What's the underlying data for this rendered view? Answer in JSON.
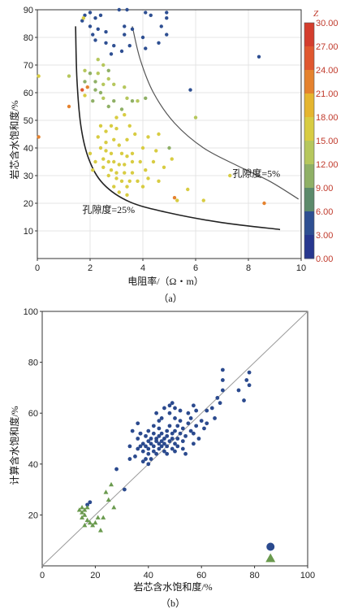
{
  "chart_data": [
    {
      "type": "scatter",
      "caption": "（a）",
      "xlabel": "电阻率/（Ω・m）",
      "ylabel": "岩芯含水饱和度/%",
      "xlim": [
        0,
        10
      ],
      "ylim": [
        0,
        90
      ],
      "xticks": [
        "0",
        "2",
        "4",
        "6",
        "8",
        "10"
      ],
      "yticks": [
        "10",
        "20",
        "30",
        "40",
        "50",
        "60",
        "70",
        "80",
        "90"
      ],
      "colorbar": {
        "title": "Z",
        "range": [
          0,
          30
        ],
        "ticks": [
          "30.00",
          "27.00",
          "24.00",
          "21.00",
          "18.00",
          "15.00",
          "12.00",
          "9.00",
          "6.00",
          "3.00",
          "0.00"
        ],
        "colors": [
          "#d43d2d",
          "#e0572f",
          "#e5822e",
          "#e5b52f",
          "#d8cc42",
          "#b6c75d",
          "#8fb066",
          "#5c8a6b",
          "#2e4f92",
          "#27378f"
        ]
      },
      "annotations": [
        {
          "text": "孔隙度=5%",
          "x": 8.3,
          "y": 29.5
        },
        {
          "text": "孔隙度=25%",
          "x": 2.7,
          "y": 16.5
        }
      ],
      "curves": [
        {
          "name": "孔隙度=25%",
          "points": [
            [
              1.45,
              84
            ],
            [
              1.5,
              65
            ],
            [
              1.65,
              48
            ],
            [
              1.95,
              36
            ],
            [
              2.5,
              27
            ],
            [
              3.5,
              20.5
            ],
            [
              5.0,
              16.5
            ],
            [
              7.0,
              13.0
            ],
            [
              9.2,
              10.5
            ]
          ]
        },
        {
          "name": "孔隙度=5%",
          "points": [
            [
              3.6,
              84
            ],
            [
              3.9,
              72
            ],
            [
              4.4,
              60
            ],
            [
              5.2,
              49
            ],
            [
              6.3,
              40
            ],
            [
              7.6,
              33.5
            ],
            [
              8.8,
              28
            ],
            [
              9.9,
              21.5
            ]
          ]
        }
      ],
      "points": [
        [
          1.8,
          88,
          4
        ],
        [
          2.0,
          89,
          4
        ],
        [
          1.7,
          86,
          4
        ],
        [
          2.2,
          87,
          5
        ],
        [
          2.4,
          88,
          4
        ],
        [
          3.1,
          90,
          4
        ],
        [
          3.4,
          90,
          4
        ],
        [
          4.1,
          89,
          4
        ],
        [
          4.3,
          88,
          5
        ],
        [
          4.9,
          89,
          4
        ],
        [
          4.9,
          87,
          4
        ],
        [
          2.0,
          84,
          4
        ],
        [
          2.3,
          83,
          4
        ],
        [
          2.1,
          81,
          4
        ],
        [
          2.2,
          79,
          4
        ],
        [
          2.6,
          82,
          4
        ],
        [
          3.3,
          84,
          4
        ],
        [
          3.6,
          83,
          4
        ],
        [
          3.3,
          81,
          4
        ],
        [
          2.6,
          78,
          4
        ],
        [
          2.9,
          77,
          4
        ],
        [
          3.5,
          77,
          4
        ],
        [
          3.2,
          75,
          4
        ],
        [
          2.8,
          74,
          5
        ],
        [
          4.0,
          80,
          4
        ],
        [
          4.7,
          84,
          4
        ],
        [
          4.9,
          81,
          4
        ],
        [
          4.6,
          78,
          4
        ],
        [
          4.1,
          76,
          4
        ],
        [
          2.3,
          72,
          13
        ],
        [
          2.5,
          70,
          14
        ],
        [
          2.0,
          67,
          11
        ],
        [
          1.8,
          68,
          13
        ],
        [
          2.3,
          67,
          13
        ],
        [
          2.7,
          65,
          13
        ],
        [
          2.2,
          64,
          12
        ],
        [
          2.5,
          63,
          13
        ],
        [
          2.9,
          63,
          14
        ],
        [
          2.2,
          61,
          11
        ],
        [
          2.4,
          60,
          12
        ],
        [
          2.5,
          58,
          13
        ],
        [
          2.9,
          57,
          10
        ],
        [
          2.7,
          55,
          12
        ],
        [
          3.2,
          54,
          11
        ],
        [
          3.4,
          58,
          13
        ],
        [
          3.6,
          57,
          10
        ],
        [
          3.8,
          57,
          13
        ],
        [
          4.1,
          58,
          12
        ],
        [
          3.3,
          62,
          15
        ],
        [
          1.8,
          64,
          12
        ],
        [
          2.1,
          57,
          11
        ],
        [
          2.7,
          68,
          12
        ],
        [
          1.9,
          62,
          22
        ],
        [
          1.7,
          61,
          25
        ],
        [
          1.2,
          55,
          24
        ],
        [
          0.05,
          44,
          24
        ],
        [
          1.8,
          59,
          18
        ],
        [
          0.05,
          66,
          16
        ],
        [
          1.2,
          66,
          14
        ],
        [
          1.75,
          87,
          17
        ],
        [
          2.4,
          48,
          16
        ],
        [
          2.6,
          46,
          17
        ],
        [
          2.8,
          48,
          17
        ],
        [
          3.0,
          47,
          16
        ],
        [
          3.5,
          48,
          17
        ],
        [
          2.3,
          44,
          16
        ],
        [
          2.6,
          42,
          17
        ],
        [
          2.9,
          43,
          17
        ],
        [
          3.1,
          41,
          16
        ],
        [
          3.4,
          43,
          16
        ],
        [
          2.4,
          40,
          17
        ],
        [
          2.6,
          39,
          17
        ],
        [
          2.8,
          38,
          16
        ],
        [
          3.2,
          38,
          17
        ],
        [
          3.4,
          37,
          16
        ],
        [
          3.6,
          38,
          17
        ],
        [
          2.5,
          36,
          17
        ],
        [
          2.7,
          35,
          16
        ],
        [
          2.9,
          35,
          17
        ],
        [
          3.1,
          34,
          16
        ],
        [
          3.3,
          34,
          17
        ],
        [
          3.6,
          35,
          17
        ],
        [
          3.9,
          35,
          16
        ],
        [
          2.5,
          33,
          17
        ],
        [
          2.8,
          32,
          16
        ],
        [
          3.0,
          31,
          17
        ],
        [
          3.3,
          31,
          17
        ],
        [
          3.6,
          31,
          16
        ],
        [
          4.1,
          32,
          17
        ],
        [
          2.7,
          30,
          17
        ],
        [
          3.0,
          29,
          16
        ],
        [
          3.2,
          28,
          17
        ],
        [
          3.5,
          28,
          17
        ],
        [
          3.8,
          28,
          16
        ],
        [
          4.2,
          29,
          17
        ],
        [
          4.6,
          28,
          17
        ],
        [
          3.4,
          26,
          16
        ],
        [
          4.0,
          26,
          17
        ],
        [
          2.0,
          38,
          17
        ],
        [
          2.2,
          35,
          16
        ],
        [
          4.4,
          35,
          17
        ],
        [
          4.8,
          33,
          17
        ],
        [
          5.1,
          36,
          17
        ],
        [
          2.1,
          32,
          17
        ],
        [
          3.0,
          51,
          17
        ],
        [
          3.3,
          52,
          17
        ],
        [
          3.7,
          45,
          16
        ],
        [
          4.2,
          44,
          17
        ],
        [
          4.6,
          45,
          16
        ],
        [
          4.0,
          40,
          17
        ],
        [
          4.5,
          39,
          17
        ],
        [
          2.9,
          26,
          17
        ],
        [
          3.1,
          24,
          17
        ],
        [
          3.4,
          23,
          16
        ],
        [
          5.3,
          21,
          17
        ],
        [
          5.7,
          25,
          17
        ],
        [
          6.3,
          21,
          17
        ],
        [
          7.3,
          30,
          17
        ],
        [
          6.0,
          51,
          13
        ],
        [
          5.0,
          40,
          11
        ],
        [
          5.8,
          61,
          4
        ],
        [
          8.4,
          73,
          4
        ],
        [
          5.2,
          22,
          22
        ],
        [
          8.6,
          20,
          22
        ]
      ]
    },
    {
      "type": "scatter",
      "caption": "（b）",
      "xlabel": "岩芯含水饱和度/%",
      "ylabel": "计算含水饱和度/%",
      "xlim": [
        0,
        100
      ],
      "ylim": [
        0,
        100
      ],
      "xticks": [
        "0",
        "20",
        "40",
        "60",
        "80",
        "100"
      ],
      "yticks": [
        "20",
        "40",
        "60",
        "80",
        "100"
      ],
      "colors": {
        "circle": "#2b4a8e",
        "triangle": "#6a9a4e",
        "line": "#9a9a9a"
      },
      "series": [
        {
          "marker": "circle",
          "values": [
            [
              28,
              38
            ],
            [
              31,
              30
            ],
            [
              33,
              42
            ],
            [
              33,
              47
            ],
            [
              34,
              53
            ],
            [
              35,
              43
            ],
            [
              36,
              46
            ],
            [
              36,
              50
            ],
            [
              37,
              47
            ],
            [
              37,
              52
            ],
            [
              38,
              41
            ],
            [
              38,
              45
            ],
            [
              38,
              48
            ],
            [
              39,
              47
            ],
            [
              39,
              51
            ],
            [
              40,
              44
            ],
            [
              40,
              46
            ],
            [
              40,
              49
            ],
            [
              40,
              53
            ],
            [
              41,
              42
            ],
            [
              41,
              48
            ],
            [
              41,
              50
            ],
            [
              42,
              45
            ],
            [
              42,
              47
            ],
            [
              42,
              52
            ],
            [
              42,
              55
            ],
            [
              43,
              44
            ],
            [
              43,
              49
            ],
            [
              43,
              50
            ],
            [
              44,
              46
            ],
            [
              44,
              48
            ],
            [
              44,
              51
            ],
            [
              44,
              54
            ],
            [
              45,
              47
            ],
            [
              45,
              49
            ],
            [
              45,
              52
            ],
            [
              45,
              58
            ],
            [
              46,
              45
            ],
            [
              46,
              48
            ],
            [
              46,
              50
            ],
            [
              47,
              44
            ],
            [
              47,
              47
            ],
            [
              47,
              51
            ],
            [
              47,
              53
            ],
            [
              48,
              49
            ],
            [
              48,
              55
            ],
            [
              48,
              60
            ],
            [
              49,
              46
            ],
            [
              49,
              50
            ],
            [
              49,
              52
            ],
            [
              49,
              64
            ],
            [
              50,
              48
            ],
            [
              50,
              53
            ],
            [
              50,
              58
            ],
            [
              50,
              62
            ],
            [
              51,
              47
            ],
            [
              51,
              50
            ],
            [
              51,
              55
            ],
            [
              52,
              52
            ],
            [
              52,
              57
            ],
            [
              52,
              61
            ],
            [
              53,
              49
            ],
            [
              53,
              54
            ],
            [
              54,
              44
            ],
            [
              54,
              51
            ],
            [
              55,
              56
            ],
            [
              55,
              60
            ],
            [
              56,
              53
            ],
            [
              56,
              58
            ],
            [
              57,
              48
            ],
            [
              57,
              52
            ],
            [
              58,
              55
            ],
            [
              58,
              61
            ],
            [
              59,
              50
            ],
            [
              60,
              57
            ],
            [
              61,
              54
            ],
            [
              62,
              56
            ],
            [
              64,
              62
            ],
            [
              65,
              58
            ],
            [
              66,
              66
            ],
            [
              67,
              64
            ],
            [
              68,
              73
            ],
            [
              68,
              77
            ],
            [
              68,
              69
            ],
            [
              74,
              69
            ],
            [
              76,
              65
            ],
            [
              77,
              73
            ],
            [
              78,
              76
            ],
            [
              78,
              71
            ],
            [
              46,
              62
            ],
            [
              43,
              60
            ],
            [
              37,
              52
            ],
            [
              36,
              56
            ],
            [
              48,
              63
            ],
            [
              53,
              46
            ],
            [
              57,
              63
            ],
            [
              44,
              57
            ],
            [
              40,
              40
            ],
            [
              39,
              42
            ],
            [
              50,
              45
            ],
            [
              62,
              61
            ],
            [
              18,
              25
            ],
            [
              17,
              24
            ],
            [
              86,
              7.5
            ]
          ]
        },
        {
          "marker": "triangle",
          "values": [
            [
              14,
              22
            ],
            [
              15,
              21
            ],
            [
              15,
              19
            ],
            [
              16,
              22
            ],
            [
              16,
              20
            ],
            [
              17,
              18
            ],
            [
              17,
              23
            ],
            [
              18,
              17
            ],
            [
              19,
              16
            ],
            [
              16,
              16
            ],
            [
              20,
              17
            ],
            [
              21,
              19
            ],
            [
              22,
              14
            ],
            [
              23,
              19
            ],
            [
              24,
              29
            ],
            [
              25,
              26
            ],
            [
              26,
              32
            ],
            [
              27,
              23
            ],
            [
              15,
              23
            ],
            [
              86,
              3
            ]
          ]
        }
      ]
    }
  ]
}
